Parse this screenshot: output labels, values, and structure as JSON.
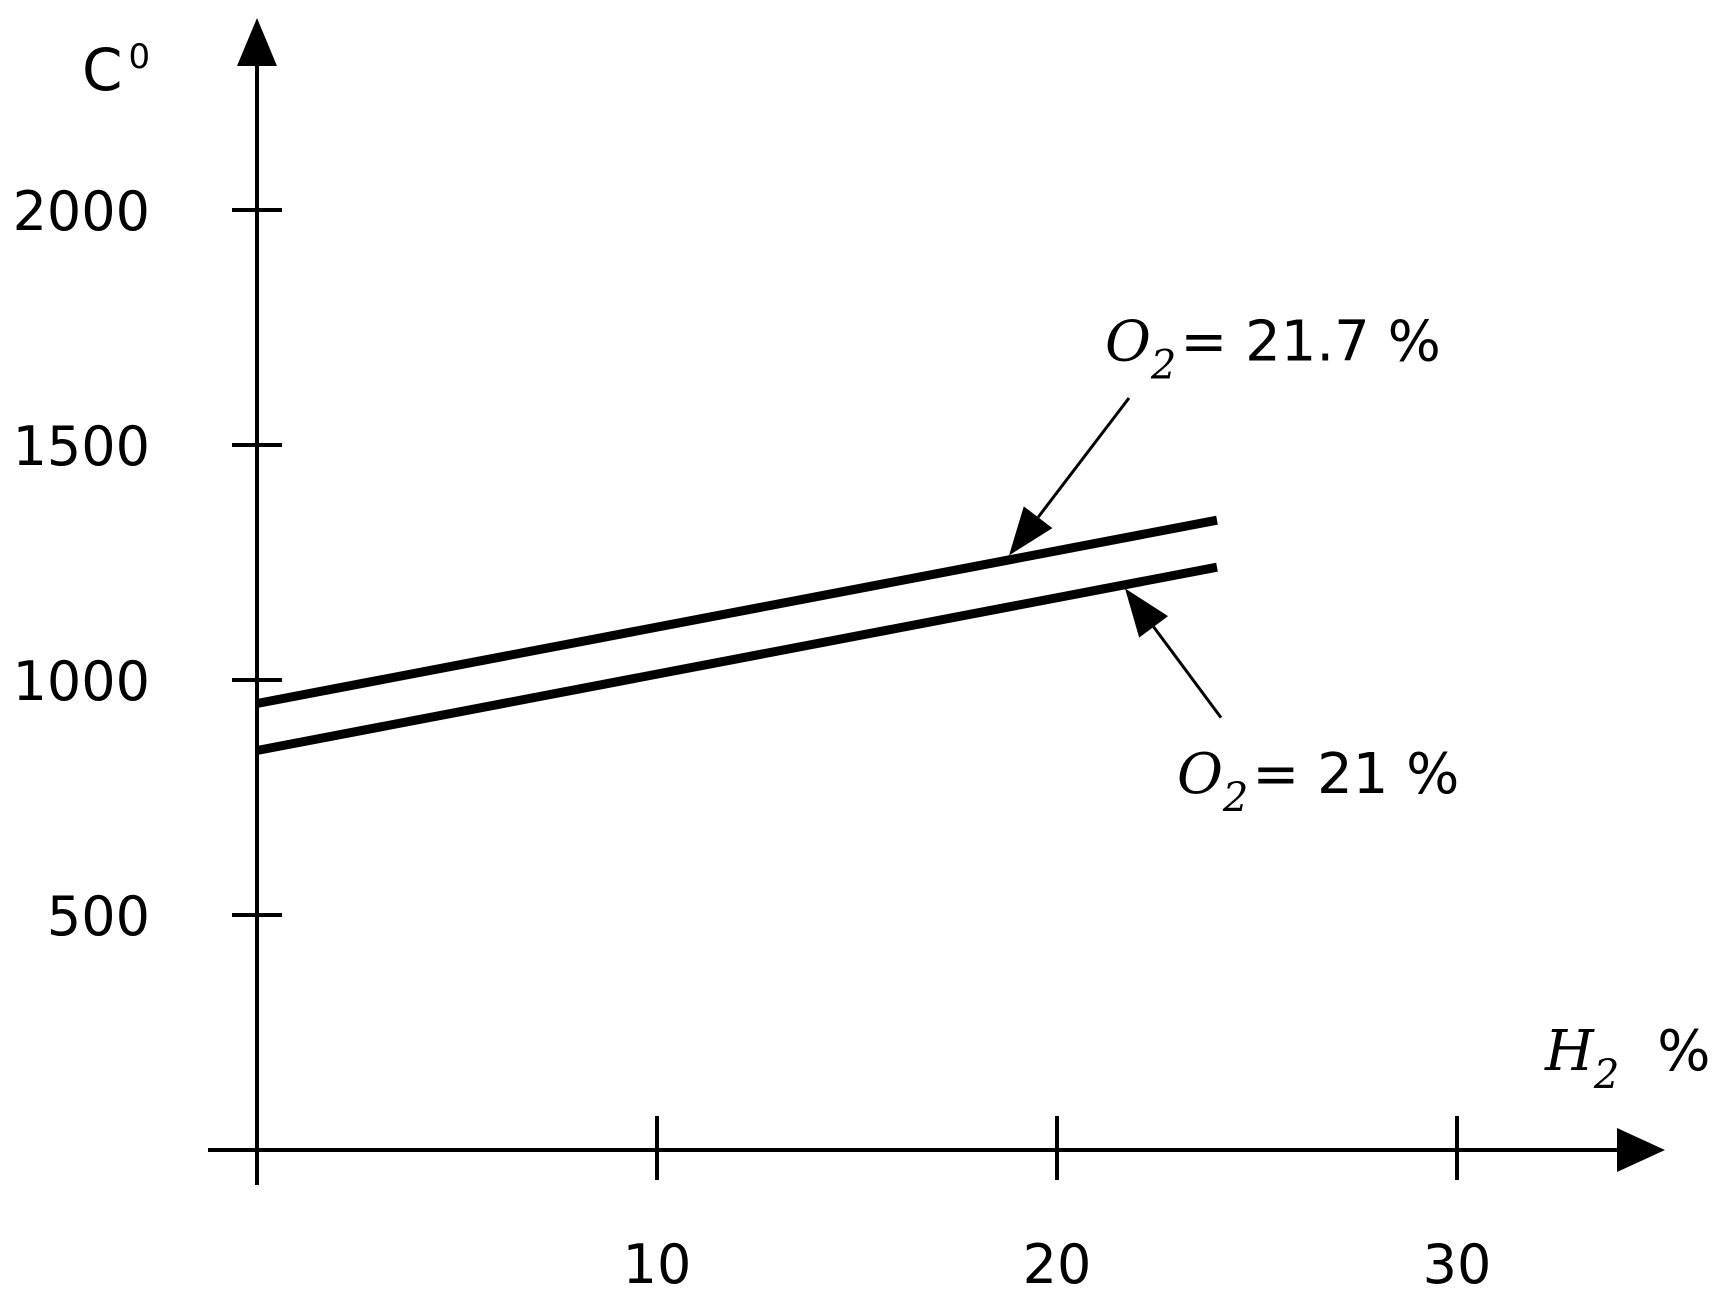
{
  "chart_data": {
    "type": "line",
    "title": "",
    "ylabel": "C",
    "ylabel_sup": "0",
    "xlabel": "H",
    "xlabel_sub": "2",
    "xlabel_unit": "%",
    "xlim": [
      0,
      38
    ],
    "ylim": [
      0,
      2500
    ],
    "x_ticks": [
      10,
      20,
      30
    ],
    "x_tick_labels": [
      "10",
      "20",
      "30"
    ],
    "y_ticks": [
      500,
      1000,
      1500,
      2000
    ],
    "y_tick_labels": [
      "500",
      "1000",
      "1500",
      "2000"
    ],
    "grid": false,
    "legend": "none",
    "series": [
      {
        "name": "O2 = 21.7 %",
        "x": [
          0,
          24
        ],
        "y": [
          950,
          1340
        ]
      },
      {
        "name": "O2 = 21 %",
        "x": [
          0,
          24
        ],
        "y": [
          850,
          1240
        ]
      }
    ],
    "annotations": [
      {
        "series_index": 0,
        "symbol": "O",
        "subscript": "2",
        "text": "= 21.7 %",
        "label_x": 21.2,
        "label_y": 1680,
        "arrow_from": [
          21.8,
          1600
        ],
        "arrow_to": [
          18.8,
          1265
        ]
      },
      {
        "series_index": 1,
        "symbol": "O",
        "subscript": "2",
        "text": "= 21 %",
        "label_x": 23.0,
        "label_y": 760,
        "arrow_from": [
          24.1,
          920
        ],
        "arrow_to": [
          21.7,
          1195
        ]
      }
    ]
  }
}
